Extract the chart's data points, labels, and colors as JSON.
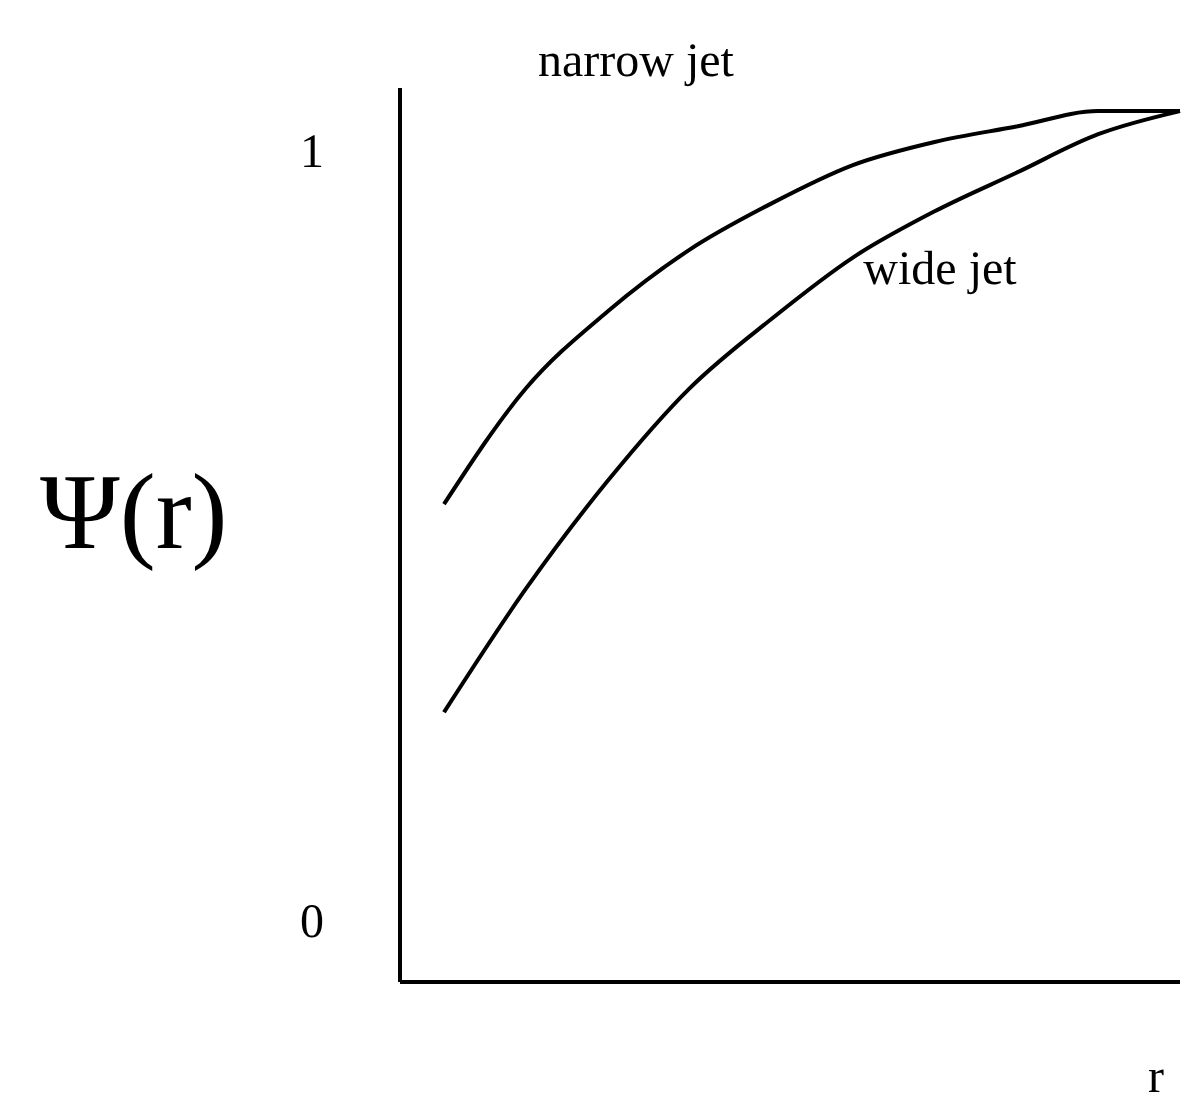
{
  "chart_data": {
    "type": "line",
    "xlabel": "r",
    "ylabel": "Ψ(r)",
    "categories": [
      null,
      null,
      null,
      null,
      null,
      null,
      null,
      null,
      null,
      null
    ],
    "series": [
      {
        "name": "narrow jet",
        "color": "#000000",
        "values": [
          0.54,
          0.69,
          0.79,
          0.87,
          0.93,
          0.98,
          1.01,
          1.03,
          1.05,
          1.05
        ]
      },
      {
        "name": "wide jet",
        "color": "#000000",
        "values": [
          0.27,
          0.43,
          0.57,
          0.69,
          0.78,
          0.86,
          0.92,
          0.97,
          1.02,
          1.05
        ]
      }
    ],
    "ylim": [
      -0.08,
      1.08
    ],
    "yticks": [
      0,
      1
    ],
    "grid": false,
    "legend": false,
    "marker": "none",
    "line_style": "solid"
  }
}
